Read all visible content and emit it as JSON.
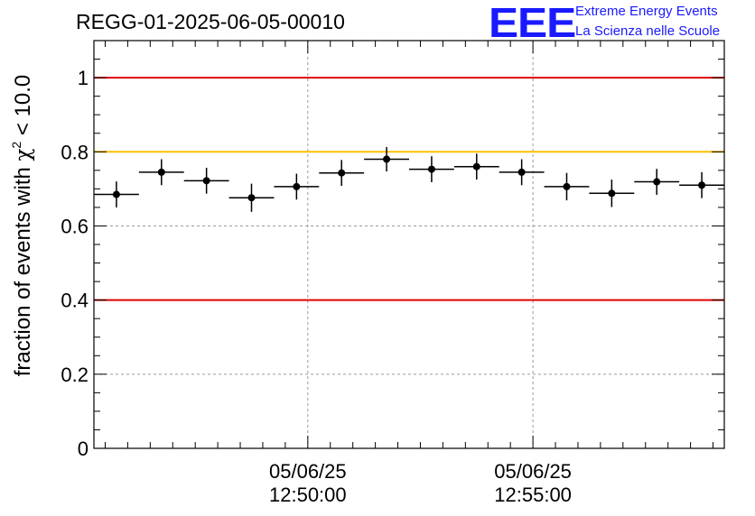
{
  "chart_data": {
    "type": "scatter",
    "title": "REGG-01-2025-06-05-00010",
    "ylabel": "fraction of events with χ² < 10.0",
    "ylabel_parts": {
      "pre": "fraction of events with ",
      "chi": "χ",
      "sup": "2",
      "post": " < 10.0"
    },
    "xlabel": "",
    "ylim": [
      0,
      1.1
    ],
    "xlim": [
      "2025-06-05 12:45:15",
      "2025-06-05 12:59:15"
    ],
    "x_unit": "time",
    "yticks": [
      "0",
      "0.2",
      "0.4",
      "0.6",
      "0.8",
      "1"
    ],
    "ytick_values": [
      0,
      0.2,
      0.4,
      0.6,
      0.8,
      1.0
    ],
    "xticks": [
      {
        "t": "2025-06-05 12:50:00",
        "date": "05/06/25",
        "time": "12:50:00"
      },
      {
        "t": "2025-06-05 12:55:00",
        "date": "05/06/25",
        "time": "12:55:00"
      }
    ],
    "grid": true,
    "reference_lines": [
      {
        "y": 1.0,
        "color": "#e00000"
      },
      {
        "y": 0.8,
        "color": "#ffbf00"
      },
      {
        "y": 0.4,
        "color": "#e00000"
      }
    ],
    "series": [
      {
        "marker_color": "#000000",
        "points": [
          {
            "x_start": "12:45:15",
            "x_end": "12:46:15",
            "y": 0.685,
            "yerr": 0.035
          },
          {
            "x_start": "12:46:15",
            "x_end": "12:47:15",
            "y": 0.745,
            "yerr": 0.035
          },
          {
            "x_start": "12:47:15",
            "x_end": "12:48:15",
            "y": 0.722,
            "yerr": 0.035
          },
          {
            "x_start": "12:48:15",
            "x_end": "12:49:15",
            "y": 0.676,
            "yerr": 0.038
          },
          {
            "x_start": "12:49:15",
            "x_end": "12:50:15",
            "y": 0.706,
            "yerr": 0.035
          },
          {
            "x_start": "12:50:15",
            "x_end": "12:51:15",
            "y": 0.743,
            "yerr": 0.035
          },
          {
            "x_start": "12:51:15",
            "x_end": "12:52:15",
            "y": 0.78,
            "yerr": 0.033
          },
          {
            "x_start": "12:52:15",
            "x_end": "12:53:15",
            "y": 0.753,
            "yerr": 0.035
          },
          {
            "x_start": "12:53:15",
            "x_end": "12:54:15",
            "y": 0.76,
            "yerr": 0.035
          },
          {
            "x_start": "12:54:15",
            "x_end": "12:55:15",
            "y": 0.745,
            "yerr": 0.035
          },
          {
            "x_start": "12:55:15",
            "x_end": "12:56:15",
            "y": 0.706,
            "yerr": 0.037
          },
          {
            "x_start": "12:56:15",
            "x_end": "12:57:15",
            "y": 0.688,
            "yerr": 0.037
          },
          {
            "x_start": "12:57:15",
            "x_end": "12:58:15",
            "y": 0.719,
            "yerr": 0.035
          },
          {
            "x_start": "12:58:15",
            "x_end": "12:59:15",
            "y": 0.71,
            "yerr": 0.035
          }
        ]
      }
    ]
  },
  "logo": {
    "mark": "EEE",
    "line1": "Extreme Energy Events",
    "line2": "La Scienza nelle Scuole",
    "color": "#1a1aff"
  },
  "colors": {
    "grid": "#9a9a9a",
    "axis": "#000000"
  }
}
